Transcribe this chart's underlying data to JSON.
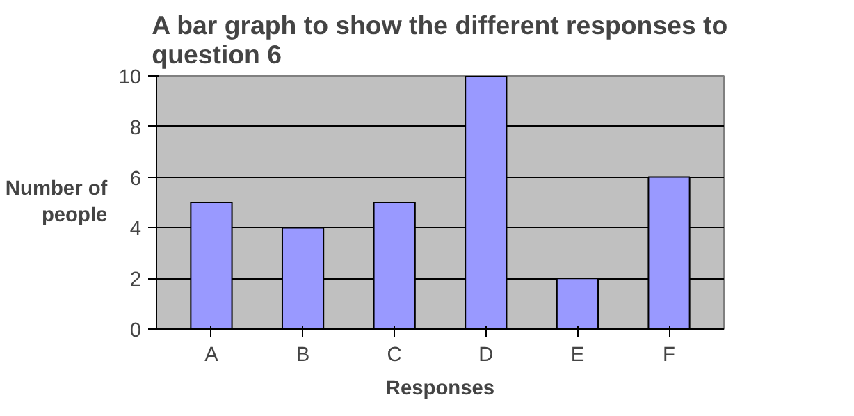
{
  "chart_data": {
    "type": "bar",
    "title": "A bar graph to show the different responses to question 6",
    "xlabel": "Responses",
    "ylabel": "Number of people",
    "categories": [
      "A",
      "B",
      "C",
      "D",
      "E",
      "F"
    ],
    "values": [
      5,
      4,
      5,
      10,
      2,
      6
    ],
    "color": "#9999ff",
    "ylim": [
      0,
      10
    ],
    "yticks": [
      0,
      2,
      4,
      6,
      8,
      10
    ],
    "grid": "y"
  }
}
